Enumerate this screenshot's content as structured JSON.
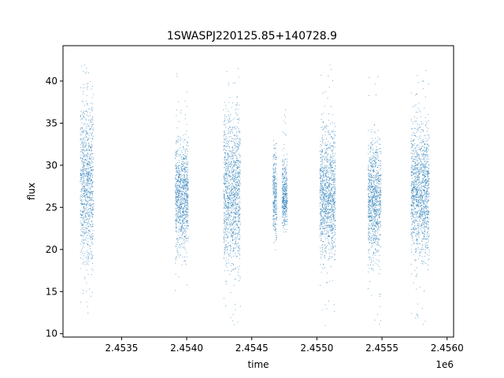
{
  "chart_data": {
    "type": "scatter",
    "title": "1SWASPJ220125.85+140728.9",
    "xlabel": "time",
    "ylabel": "flux",
    "x_offset_label": "1e6",
    "xlim": [
      2.45305,
      2.45605
    ],
    "ylim": [
      9.6,
      44.2
    ],
    "x_ticks": [
      2.4535,
      2.454,
      2.4545,
      2.455,
      2.4555,
      2.456
    ],
    "x_tick_labels": [
      "2.4535",
      "2.4540",
      "2.4545",
      "2.4550",
      "2.4555",
      "2.4560"
    ],
    "y_ticks": [
      10,
      15,
      20,
      25,
      30,
      35,
      40
    ],
    "y_tick_labels": [
      "10",
      "15",
      "20",
      "25",
      "30",
      "35",
      "40"
    ],
    "grid": false,
    "legend": "none",
    "series": [
      {
        "color": "#1f77b4",
        "clusters": [
          {
            "x_range": [
              2.45318,
              2.45328
            ],
            "flux_core": [
              19,
              37
            ],
            "flux_range": [
              11,
              42
            ]
          },
          {
            "x_range": [
              2.45391,
              2.45401
            ],
            "flux_core": [
              21,
              32
            ],
            "flux_range": [
              15,
              41.5
            ]
          },
          {
            "x_range": [
              2.45428,
              2.45441
            ],
            "flux_core": [
              19,
              35
            ],
            "flux_range": [
              11,
              42
            ]
          },
          {
            "x_range": [
              2.45466,
              2.45469
            ],
            "flux_core": [
              22,
              31
            ],
            "flux_range": [
              20,
              33
            ]
          },
          {
            "x_range": [
              2.45473,
              2.45477
            ],
            "flux_core": [
              23,
              30
            ],
            "flux_range": [
              21,
              38
            ]
          },
          {
            "x_range": [
              2.45502,
              2.45514
            ],
            "flux_core": [
              20,
              33
            ],
            "flux_range": [
              11,
              42
            ]
          },
          {
            "x_range": [
              2.45539,
              2.45549
            ],
            "flux_core": [
              20,
              32
            ],
            "flux_range": [
              11,
              41
            ]
          },
          {
            "x_range": [
              2.45572,
              2.45586
            ],
            "flux_core": [
              20,
              34
            ],
            "flux_range": [
              10.5,
              42
            ]
          }
        ]
      }
    ]
  }
}
